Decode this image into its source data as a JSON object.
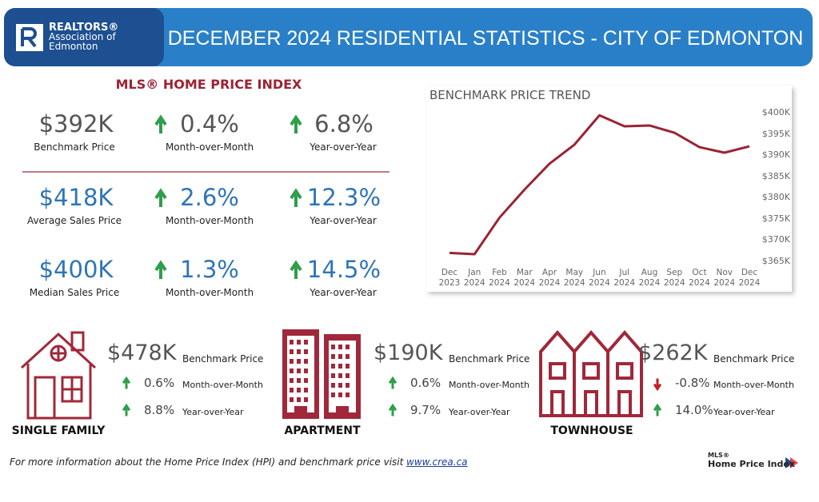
{
  "header": {
    "logo": [
      "REALTORS®",
      "Association of",
      "Edmonton"
    ],
    "title": "DECEMBER 2024 RESIDENTIAL STATISTICS - CITY OF EDMONTON"
  },
  "hpi": {
    "title": "MLS® HOME PRICE INDEX",
    "rows": [
      {
        "value": "$392K",
        "label": "Benchmark Price",
        "mom": "0.4%",
        "mom_label": "Month-over-Month",
        "yoy": "6.8%",
        "yoy_label": "Year-over-Year"
      },
      {
        "value": "$418K",
        "label": "Average Sales Price",
        "mom": "2.6%",
        "mom_label": "Month-over-Month",
        "yoy": "12.3%",
        "yoy_label": "Year-over-Year"
      },
      {
        "value": "$400K",
        "label": "Median Sales Price",
        "mom": "1.3%",
        "mom_label": "Month-over-Month",
        "yoy": "14.5%",
        "yoy_label": "Year-over-Year"
      }
    ]
  },
  "chart_data": {
    "type": "line",
    "title": "BENCHMARK PRICE TREND",
    "categories": [
      "Dec 2023",
      "Jan 2024",
      "Feb 2024",
      "Mar 2024",
      "Apr 2024",
      "May 2024",
      "Jun 2024",
      "Jul 2024",
      "Aug 2024",
      "Sep 2024",
      "Oct 2024",
      "Nov 2024",
      "Dec 2024"
    ],
    "values": [
      367.0,
      366.7,
      375.3,
      381.9,
      388.0,
      392.5,
      399.4,
      396.8,
      397.0,
      395.3,
      391.9,
      390.6,
      392.1
    ],
    "color": "#9b2335",
    "ylim": [
      362,
      402
    ],
    "yticks": [
      {
        "value": 365,
        "label": "$365K"
      },
      {
        "value": 370,
        "label": "$370K"
      },
      {
        "value": 375,
        "label": "$375K"
      },
      {
        "value": 380,
        "label": "$380K"
      },
      {
        "value": 385,
        "label": "$385K"
      },
      {
        "value": 390,
        "label": "$390K"
      },
      {
        "value": 395,
        "label": "$395K"
      },
      {
        "value": 400,
        "label": "$400K"
      }
    ]
  },
  "property_types": [
    {
      "name": "SINGLE FAMILY",
      "price": "$478K",
      "price_label": "Benchmark Price",
      "mom": "0.6%",
      "mom_label": "Month-over-Month",
      "yoy": "8.8%",
      "yoy_label": "Year-over-Year"
    },
    {
      "name": "APARTMENT",
      "price": "$190K",
      "price_label": "Benchmark Price",
      "mom": "0.6%",
      "mom_label": "Month-over-Month",
      "yoy": "9.7%",
      "yoy_label": "Year-over-Year"
    },
    {
      "name": "TOWNHOUSE",
      "price": "$262K",
      "price_label": "Benchmark Price",
      "mom": "-0.8%",
      "mom_label": "Month-over-Month",
      "yoy": "14.0%",
      "yoy_label": "Year-over-Year"
    }
  ],
  "footer": {
    "text": "For more information about the Home Price Index (HPI) and benchmark price visit",
    "link": "www.crea.ca",
    "logo": [
      "MLS®",
      "Home Price Index"
    ]
  }
}
